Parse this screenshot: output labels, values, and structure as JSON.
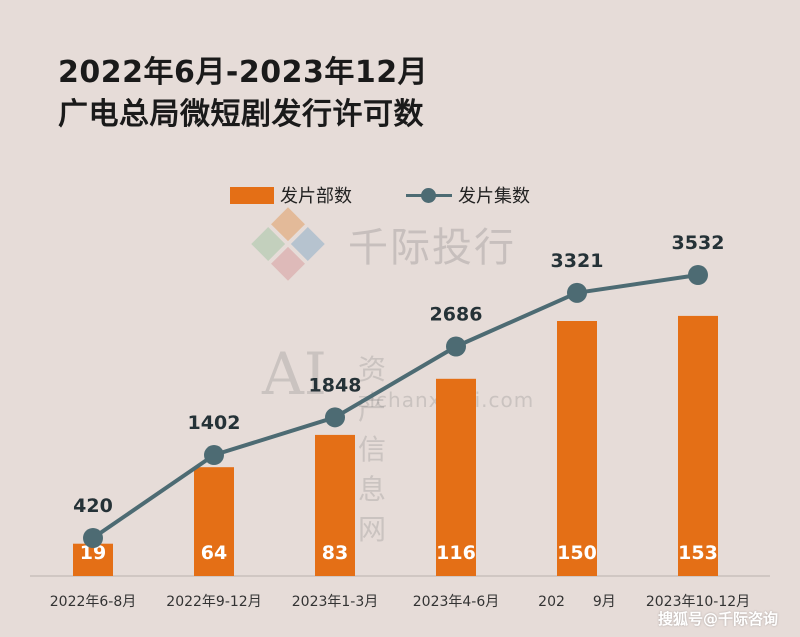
{
  "title_line1": "2022年6月-2023年12月",
  "title_line2": "广电总局微短剧发行许可数",
  "watermark_company": "千际投行",
  "watermark_ai": "AI",
  "watermark_site_cn": "资产信息网",
  "watermark_site_en": "zichanxinxi.com",
  "footer": "搜狐号@千际咨询",
  "colors": {
    "bar": "#e46f16",
    "line": "#4d6b73",
    "background": "#e6dcd8"
  },
  "chart_data": {
    "type": "bar",
    "categories": [
      "2022年6-8月",
      "2022年9-12月",
      "2023年1-3月",
      "2023年4-6月",
      "202　　9月",
      "2023年10-12月"
    ],
    "series": [
      {
        "name": "发片部数",
        "type": "bar",
        "values": [
          19,
          64,
          83,
          116,
          150,
          153
        ]
      },
      {
        "name": "发片集数",
        "type": "line",
        "values": [
          420,
          1402,
          1848,
          2686,
          3321,
          3532
        ]
      }
    ],
    "legend": "top",
    "grid": false
  }
}
